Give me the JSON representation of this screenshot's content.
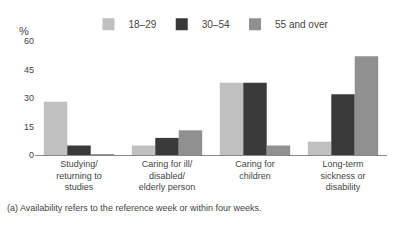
{
  "chart_data": {
    "type": "bar",
    "categories": [
      "Studying/\nreturning to\nstudies",
      "Caring for ill/\ndisabled/\nelderly person",
      "Caring for\nchildren",
      "Long-term\nsickness or\ndisability"
    ],
    "series": [
      {
        "name": "18–29",
        "color": "#c0c0c0",
        "values": [
          28,
          5,
          38,
          7
        ]
      },
      {
        "name": "30–54",
        "color": "#3a3a3a",
        "values": [
          5,
          9,
          38,
          32
        ]
      },
      {
        "name": "55 and over",
        "color": "#909090",
        "values": [
          0.5,
          13,
          5,
          52
        ]
      }
    ],
    "ylabel": "%",
    "annotations": [
      "(a) Availability refers to the reference week or within four weeks."
    ],
    "ylim": [
      0,
      60
    ],
    "yticks": [
      0,
      15,
      30,
      45,
      60
    ],
    "grid": false,
    "legend": "top"
  }
}
